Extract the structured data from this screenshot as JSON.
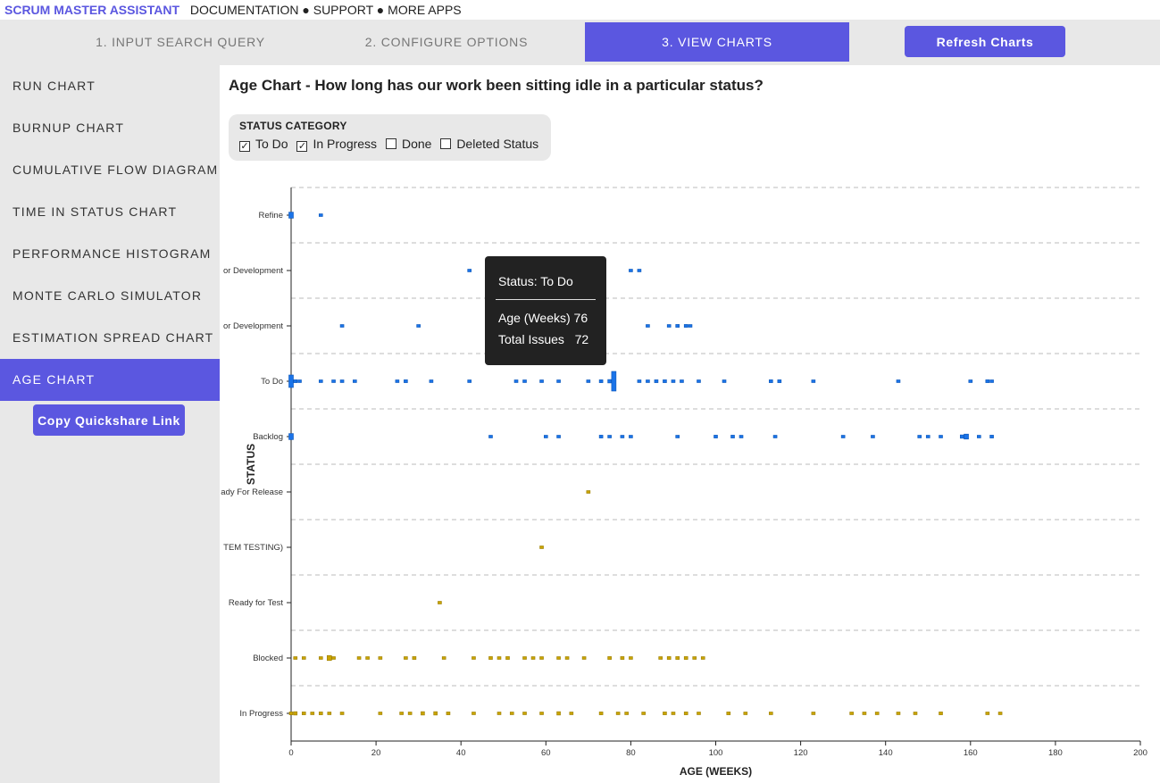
{
  "topbar": {
    "brand": "SCRUM MASTER ASSISTANT",
    "links": [
      "DOCUMENTATION",
      "SUPPORT",
      "MORE APPS"
    ],
    "separator": "●"
  },
  "steps": [
    {
      "label": "1. INPUT SEARCH QUERY",
      "active": false
    },
    {
      "label": "2. CONFIGURE OPTIONS",
      "active": false
    },
    {
      "label": "3. VIEW CHARTS",
      "active": true
    }
  ],
  "refresh_label": "Refresh Charts",
  "sidebar": {
    "items": [
      {
        "label": "RUN CHART",
        "active": false
      },
      {
        "label": "BURNUP CHART",
        "active": false
      },
      {
        "label": "CUMULATIVE FLOW DIAGRAM",
        "active": false
      },
      {
        "label": "TIME IN STATUS CHART",
        "active": false
      },
      {
        "label": "PERFORMANCE HISTOGRAM",
        "active": false
      },
      {
        "label": "MONTE CARLO SIMULATOR",
        "active": false
      },
      {
        "label": "ESTIMATION SPREAD CHART",
        "active": false
      },
      {
        "label": "AGE CHART",
        "active": true
      }
    ],
    "copy_label": "Copy Quickshare Link"
  },
  "main": {
    "title": "Age Chart - How long has our work been sitting idle in a particular status?",
    "filter": {
      "title": "STATUS CATEGORY",
      "options": [
        {
          "label": "To Do",
          "checked": true
        },
        {
          "label": "In Progress",
          "checked": true
        },
        {
          "label": "Done",
          "checked": false
        },
        {
          "label": "Deleted Status",
          "checked": false
        }
      ]
    }
  },
  "tooltip": {
    "status_line": "Status: To Do",
    "age_line": "Age (Weeks) 76",
    "issues_line": "Total Issues   72"
  },
  "colors": {
    "accent": "#5b57e0",
    "todo": "#1a73e8",
    "inprogress": "#c9a400"
  },
  "chart_data": {
    "type": "scatter",
    "xlabel": "AGE (WEEKS)",
    "ylabel": "STATUS",
    "xlim": [
      0,
      200
    ],
    "xticks": [
      0,
      20,
      40,
      60,
      80,
      100,
      120,
      140,
      160,
      180,
      200
    ],
    "grid": "horizontal dashed",
    "categories": [
      "Refine",
      "Ready for Development",
      "Ready for Development",
      "To Do",
      "Backlog",
      "Ready For Release",
      "(SYSTEM TESTING)",
      "Ready for Test",
      "Blocked",
      "In Progress"
    ],
    "category_labels_shown": [
      "Refine",
      "or Development",
      "or Development",
      "To Do",
      "Backlog",
      "ady For Release",
      "TEM TESTING)",
      "Ready for Test",
      "Blocked",
      "In Progress"
    ],
    "series": [
      {
        "category": "Refine",
        "group": "To Do",
        "points": [
          [
            0,
            8
          ],
          [
            7,
            1
          ]
        ]
      },
      {
        "category_index": 1,
        "group": "To Do",
        "points": [
          [
            42,
            1
          ],
          [
            80,
            1
          ],
          [
            82,
            1
          ]
        ]
      },
      {
        "category_index": 2,
        "group": "To Do",
        "points": [
          [
            12,
            1
          ],
          [
            30,
            1
          ],
          [
            84,
            1
          ],
          [
            89,
            1
          ],
          [
            91,
            2
          ],
          [
            93,
            2
          ],
          [
            94,
            1
          ]
        ]
      },
      {
        "category": "To Do",
        "group": "To Do",
        "points": [
          [
            0,
            20
          ],
          [
            1,
            2
          ],
          [
            2,
            1
          ],
          [
            7,
            1
          ],
          [
            10,
            1
          ],
          [
            12,
            1
          ],
          [
            15,
            1
          ],
          [
            25,
            1
          ],
          [
            27,
            2
          ],
          [
            33,
            1
          ],
          [
            42,
            1
          ],
          [
            53,
            1
          ],
          [
            55,
            1
          ],
          [
            59,
            1
          ],
          [
            63,
            1
          ],
          [
            70,
            1
          ],
          [
            73,
            2
          ],
          [
            75,
            3
          ],
          [
            76,
            72
          ],
          [
            82,
            1
          ],
          [
            84,
            1
          ],
          [
            86,
            2
          ],
          [
            88,
            2
          ],
          [
            90,
            1
          ],
          [
            92,
            1
          ],
          [
            96,
            1
          ],
          [
            102,
            1
          ],
          [
            113,
            2
          ],
          [
            115,
            2
          ],
          [
            123,
            1
          ],
          [
            143,
            1
          ],
          [
            160,
            1
          ],
          [
            164,
            2
          ],
          [
            165,
            1
          ]
        ]
      },
      {
        "category": "Backlog",
        "group": "To Do",
        "points": [
          [
            0,
            8
          ],
          [
            47,
            1
          ],
          [
            60,
            1
          ],
          [
            63,
            1
          ],
          [
            73,
            2
          ],
          [
            75,
            1
          ],
          [
            78,
            1
          ],
          [
            80,
            1
          ],
          [
            91,
            1
          ],
          [
            100,
            2
          ],
          [
            104,
            2
          ],
          [
            106,
            1
          ],
          [
            114,
            1
          ],
          [
            130,
            1
          ],
          [
            137,
            1
          ],
          [
            148,
            1
          ],
          [
            150,
            1
          ],
          [
            153,
            1
          ],
          [
            158,
            3
          ],
          [
            159,
            6
          ],
          [
            162,
            1
          ],
          [
            165,
            2
          ]
        ]
      },
      {
        "category": "Ready For Release",
        "group": "In Progress",
        "points": [
          [
            70,
            1
          ]
        ]
      },
      {
        "category": "(SYSTEM TESTING)",
        "group": "In Progress",
        "points": [
          [
            59,
            1
          ]
        ]
      },
      {
        "category": "Ready for Test",
        "group": "In Progress",
        "points": [
          [
            35,
            1
          ]
        ]
      },
      {
        "category": "Blocked",
        "group": "In Progress",
        "points": [
          [
            1,
            1
          ],
          [
            3,
            1
          ],
          [
            7,
            1
          ],
          [
            9,
            6
          ],
          [
            10,
            1
          ],
          [
            16,
            1
          ],
          [
            18,
            1
          ],
          [
            21,
            1
          ],
          [
            27,
            1
          ],
          [
            29,
            2
          ],
          [
            36,
            1
          ],
          [
            43,
            1
          ],
          [
            47,
            2
          ],
          [
            49,
            1
          ],
          [
            51,
            2
          ],
          [
            55,
            1
          ],
          [
            57,
            1
          ],
          [
            59,
            1
          ],
          [
            63,
            1
          ],
          [
            65,
            1
          ],
          [
            69,
            1
          ],
          [
            75,
            2
          ],
          [
            78,
            2
          ],
          [
            80,
            1
          ],
          [
            87,
            1
          ],
          [
            89,
            2
          ],
          [
            91,
            2
          ],
          [
            93,
            2
          ],
          [
            95,
            1
          ],
          [
            97,
            1
          ]
        ]
      },
      {
        "category": "In Progress",
        "group": "In Progress",
        "points": [
          [
            0,
            2
          ],
          [
            1,
            3
          ],
          [
            3,
            2
          ],
          [
            5,
            1
          ],
          [
            7,
            2
          ],
          [
            9,
            1
          ],
          [
            12,
            1
          ],
          [
            21,
            1
          ],
          [
            26,
            1
          ],
          [
            28,
            1
          ],
          [
            31,
            3
          ],
          [
            34,
            3
          ],
          [
            37,
            2
          ],
          [
            43,
            1
          ],
          [
            49,
            1
          ],
          [
            52,
            1
          ],
          [
            55,
            1
          ],
          [
            59,
            1
          ],
          [
            63,
            3
          ],
          [
            66,
            1
          ],
          [
            73,
            2
          ],
          [
            77,
            1
          ],
          [
            79,
            1
          ],
          [
            83,
            1
          ],
          [
            88,
            2
          ],
          [
            90,
            1
          ],
          [
            93,
            2
          ],
          [
            96,
            1
          ],
          [
            103,
            2
          ],
          [
            107,
            1
          ],
          [
            113,
            1
          ],
          [
            123,
            1
          ],
          [
            132,
            1
          ],
          [
            135,
            1
          ],
          [
            138,
            1
          ],
          [
            143,
            1
          ],
          [
            147,
            1
          ],
          [
            153,
            2
          ],
          [
            164,
            1
          ],
          [
            167,
            1
          ]
        ]
      }
    ]
  }
}
